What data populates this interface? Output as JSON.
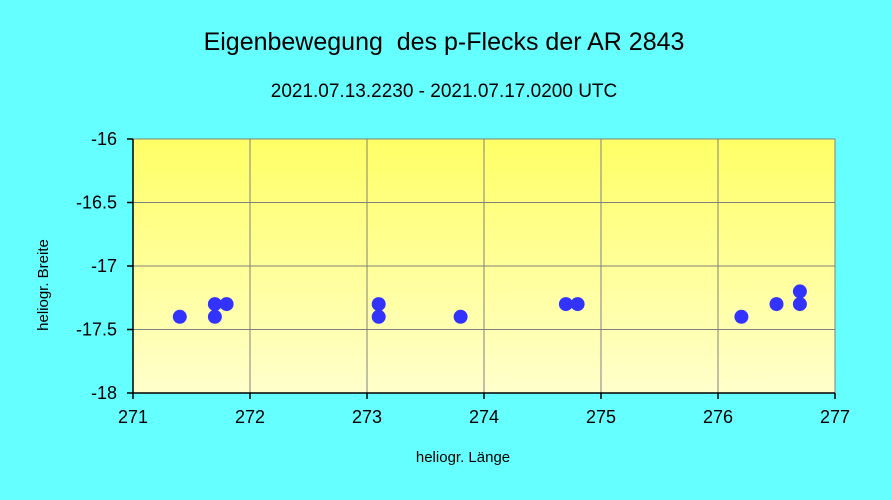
{
  "chart_data": {
    "type": "scatter",
    "title": "Eigenbewegung  des p-Flecks der AR 2843",
    "subtitle": "2021.07.13.2230 - 2021.07.17.0200 UTC",
    "xlabel": "heliogr. Länge",
    "ylabel": "heliogr. Breite",
    "xlim": [
      271,
      277
    ],
    "ylim": [
      -18,
      -16
    ],
    "x_ticks": [
      271,
      272,
      273,
      274,
      275,
      276,
      277
    ],
    "y_ticks": [
      -16,
      -16.5,
      -17,
      -17.5,
      -18
    ],
    "grid": true,
    "legend": "none",
    "series": [
      {
        "x": [
          271.4,
          271.7,
          271.7,
          271.8,
          273.1,
          273.1,
          273.8,
          274.7,
          274.8,
          276.2,
          276.5,
          276.7,
          276.7
        ],
        "y": [
          -17.4,
          -17.3,
          -17.4,
          -17.3,
          -17.3,
          -17.4,
          -17.4,
          -17.3,
          -17.3,
          -17.4,
          -17.3,
          -17.2,
          -17.3
        ]
      }
    ],
    "colors": {
      "background": "#66ffff",
      "plot_top": "#ffff66",
      "plot_bottom": "#ffffcc",
      "marker": "#3333ff",
      "grid": "#808080",
      "axis": "#000000"
    }
  }
}
